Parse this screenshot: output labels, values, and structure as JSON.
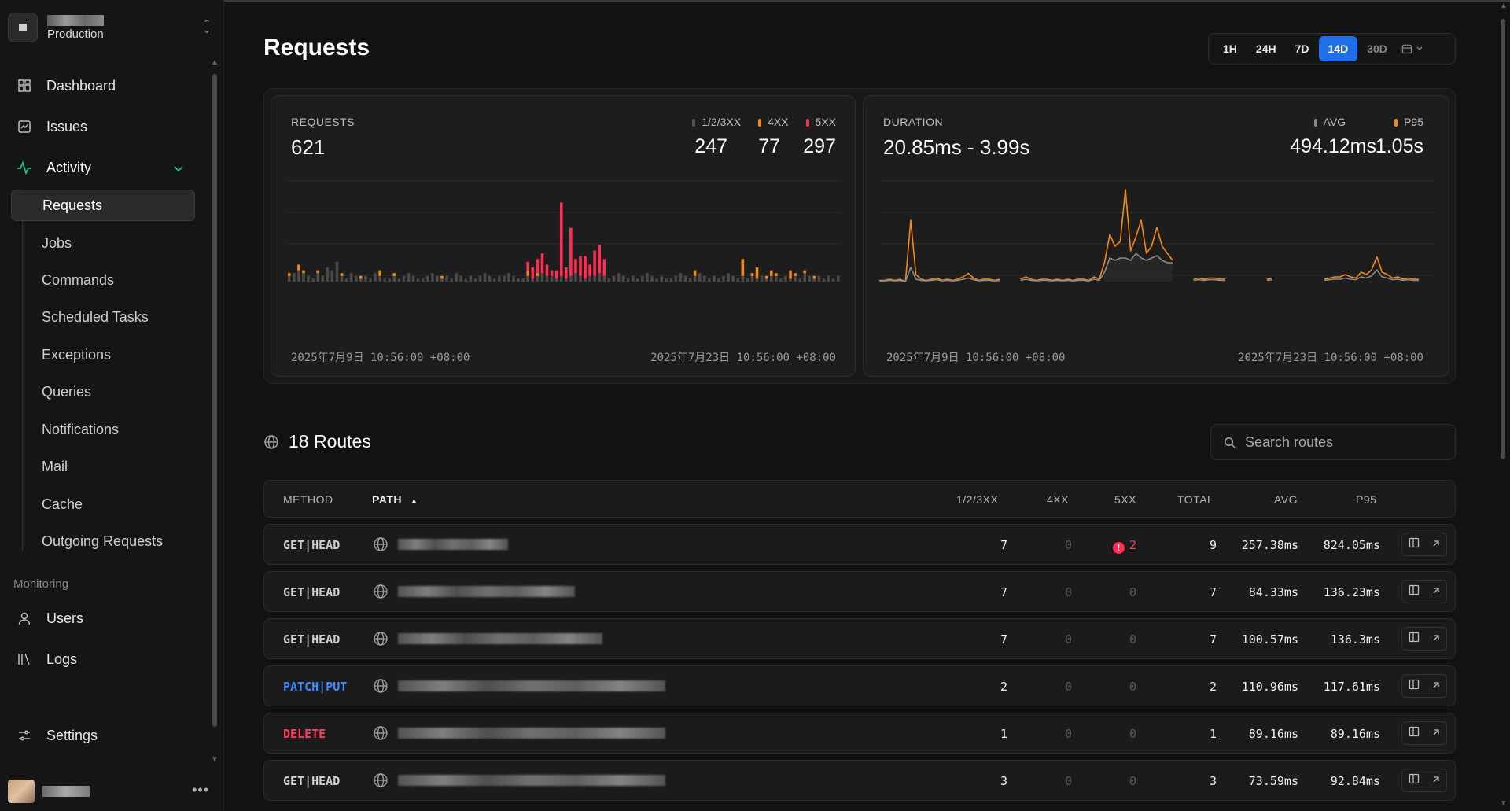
{
  "workspace": {
    "env": "Production"
  },
  "nav": {
    "dashboard": "Dashboard",
    "issues": "Issues",
    "activity": "Activity",
    "sub": [
      "Requests",
      "Jobs",
      "Commands",
      "Scheduled Tasks",
      "Exceptions",
      "Queries",
      "Notifications",
      "Mail",
      "Cache",
      "Outgoing Requests"
    ],
    "monitoring_label": "Monitoring",
    "users": "Users",
    "logs": "Logs",
    "settings": "Settings"
  },
  "page": {
    "title": "Requests"
  },
  "range": {
    "options": [
      "1H",
      "24H",
      "7D",
      "14D",
      "30D"
    ],
    "selected": "14D"
  },
  "requests_card": {
    "label": "REQUESTS",
    "total": "621",
    "legend": [
      {
        "label": "1/2/3XX",
        "value": "247",
        "color": "#555555"
      },
      {
        "label": "4XX",
        "value": "77",
        "color": "#f28a1b"
      },
      {
        "label": "5XX",
        "value": "297",
        "color": "#ff2e54"
      }
    ],
    "start_date": "2025年7月9日 10:56:00 +08:00",
    "end_date": "2025年7月23日 10:56:00 +08:00"
  },
  "duration_card": {
    "label": "DURATION",
    "range": "20.85ms - 3.99s",
    "legend": [
      {
        "label": "AVG",
        "value": "494.12ms",
        "color": "#8a8a8a"
      },
      {
        "label": "P95",
        "value": "1.05s",
        "color": "#f28a1b"
      }
    ],
    "start_date": "2025年7月9日 10:56:00 +08:00",
    "end_date": "2025年7月23日 10:56:00 +08:00"
  },
  "routes": {
    "title": "18 Routes",
    "search_placeholder": "Search routes",
    "columns": {
      "method": "METHOD",
      "path": "PATH",
      "ok": "1/2/3XX",
      "c4": "4XX",
      "c5": "5XX",
      "total": "TOTAL",
      "avg": "AVG",
      "p95": "P95"
    },
    "rows": [
      {
        "method": "GET|HEAD",
        "ok": "7",
        "c4": "0",
        "c5": "2",
        "total": "9",
        "avg": "257.38ms",
        "p95": "824.05ms"
      },
      {
        "method": "GET|HEAD",
        "ok": "7",
        "c4": "0",
        "c5": "0",
        "total": "7",
        "avg": "84.33ms",
        "p95": "136.23ms"
      },
      {
        "method": "GET|HEAD",
        "ok": "7",
        "c4": "0",
        "c5": "0",
        "total": "7",
        "avg": "100.57ms",
        "p95": "136.3ms"
      },
      {
        "method": "PATCH|PUT",
        "ok": "2",
        "c4": "0",
        "c5": "0",
        "total": "2",
        "avg": "110.96ms",
        "p95": "117.61ms"
      },
      {
        "method": "DELETE",
        "ok": "1",
        "c4": "0",
        "c5": "0",
        "total": "1",
        "avg": "89.16ms",
        "p95": "89.16ms"
      },
      {
        "method": "GET|HEAD",
        "ok": "3",
        "c4": "0",
        "c5": "0",
        "total": "3",
        "avg": "73.59ms",
        "p95": "92.84ms"
      }
    ]
  },
  "icons": {
    "sort": "sort-ascending-icon",
    "globe": "globe-icon",
    "search": "search-icon",
    "calendar": "calendar-icon"
  },
  "colors": {
    "accent": "#1e6fe8",
    "warn": "#f28a1b",
    "error": "#ff2e54",
    "ok": "#555555"
  },
  "chart_data": [
    {
      "type": "bar",
      "title": "REQUESTS",
      "stacked": true,
      "series": [
        {
          "name": "1/2/3XX",
          "color": "#4a4a4a",
          "values": [
            2,
            3,
            4,
            3,
            2,
            1,
            3,
            2,
            5,
            4,
            7,
            2,
            1,
            3,
            2,
            1,
            2,
            1,
            3,
            2,
            1,
            1,
            2,
            1,
            2,
            3,
            2,
            1,
            1,
            2,
            3,
            2,
            1,
            2,
            1,
            3,
            2,
            1,
            2,
            1,
            2,
            3,
            2,
            1,
            2,
            2,
            3,
            2,
            1,
            1,
            2,
            1,
            2,
            3,
            2,
            2,
            1,
            2,
            1,
            2,
            3,
            2,
            1,
            2,
            2,
            3,
            2,
            1,
            2,
            3,
            2,
            1,
            2,
            1,
            2,
            3,
            2,
            1,
            2,
            1,
            1,
            2,
            3,
            2,
            1,
            2,
            3,
            2,
            1,
            2,
            1,
            2,
            3,
            2,
            1,
            2,
            1,
            2,
            1,
            2,
            1,
            2,
            2,
            1,
            2,
            1,
            2,
            1,
            3,
            2,
            1,
            2,
            1,
            2,
            1,
            2
          ]
        },
        {
          "name": "4XX",
          "color": "#f28a1b",
          "values": [
            1,
            0,
            2,
            1,
            0,
            0,
            1,
            0,
            0,
            0,
            0,
            1,
            0,
            0,
            0,
            1,
            0,
            0,
            0,
            2,
            0,
            0,
            1,
            0,
            0,
            0,
            0,
            0,
            0,
            0,
            0,
            0,
            1,
            0,
            0,
            0,
            0,
            0,
            0,
            0,
            0,
            0,
            0,
            0,
            0,
            0,
            0,
            0,
            0,
            0,
            2,
            0,
            1,
            0,
            0,
            0,
            0,
            0,
            0,
            0,
            0,
            0,
            0,
            0,
            0,
            0,
            0,
            0,
            0,
            0,
            0,
            0,
            0,
            0,
            0,
            0,
            0,
            0,
            0,
            0,
            0,
            0,
            0,
            0,
            0,
            2,
            0,
            0,
            0,
            0,
            0,
            0,
            0,
            0,
            0,
            6,
            0,
            1,
            4,
            0,
            1,
            2,
            1,
            0,
            0,
            3,
            1,
            0,
            1,
            0,
            1,
            0,
            0,
            0,
            0,
            0
          ]
        },
        {
          "name": "5XX",
          "color": "#ff2e54",
          "values": [
            0,
            0,
            0,
            0,
            0,
            0,
            0,
            0,
            0,
            0,
            0,
            0,
            0,
            0,
            0,
            0,
            0,
            0,
            0,
            0,
            0,
            0,
            0,
            0,
            0,
            0,
            0,
            0,
            0,
            0,
            0,
            0,
            0,
            0,
            0,
            0,
            0,
            0,
            0,
            0,
            0,
            0,
            0,
            0,
            0,
            0,
            0,
            0,
            0,
            0,
            3,
            4,
            5,
            7,
            4,
            2,
            3,
            26,
            4,
            17,
            5,
            7,
            8,
            4,
            9,
            10,
            6,
            0,
            0,
            0,
            0,
            0,
            0,
            0,
            0,
            0,
            0,
            0,
            0,
            0,
            0,
            0,
            0,
            0,
            0,
            0,
            0,
            0,
            0,
            0,
            0,
            0,
            0,
            0,
            0,
            0,
            0,
            0,
            0,
            0,
            0,
            0,
            0,
            0,
            0,
            0,
            0,
            0,
            0,
            0,
            0,
            0,
            0,
            0,
            0,
            0
          ]
        }
      ]
    },
    {
      "type": "line",
      "title": "DURATION",
      "series": [
        {
          "name": "P95",
          "color": "#f28a1b",
          "values": [
            0.05,
            0.05,
            0.1,
            0.05,
            0.1,
            0.0,
            2.6,
            0.3,
            0.1,
            0.05,
            0.1,
            0.15,
            0.05,
            0.1,
            0.05,
            0.1,
            0.2,
            0.35,
            0.15,
            0.05,
            0.1,
            0.1,
            0.05,
            0.1,
            null,
            null,
            null,
            0.1,
            0.2,
            0.1,
            0.05,
            0.1,
            0.1,
            0.05,
            0.1,
            0.05,
            0.1,
            0.05,
            0.1,
            0.1,
            0.05,
            0.2,
            0.1,
            0.8,
            2.0,
            1.5,
            1.7,
            3.9,
            1.3,
            1.9,
            2.6,
            1.2,
            1.5,
            2.3,
            1.5,
            1.2,
            0.9,
            null,
            null,
            null,
            0.1,
            0.15,
            0.1,
            0.15,
            0.15,
            0.1,
            0.1,
            null,
            null,
            0.05,
            null,
            null,
            0.1,
            null,
            0.1,
            0.15,
            null,
            0.05,
            null,
            null,
            0.1,
            null,
            0.05,
            null,
            null,
            0.1,
            0.15,
            0.2,
            0.2,
            0.3,
            0.2,
            0.15,
            0.4,
            0.3,
            0.5,
            1.05,
            0.4,
            0.3,
            0.15,
            0.2,
            0.1,
            0.15,
            0.1,
            0.1,
            null,
            null,
            0.05
          ]
        },
        {
          "name": "AVG",
          "color": "#8a8a8a",
          "values": [
            0.03,
            0.03,
            0.05,
            0.03,
            0.05,
            0.0,
            0.6,
            0.1,
            0.05,
            0.03,
            0.05,
            0.08,
            0.03,
            0.05,
            0.03,
            0.05,
            0.1,
            0.15,
            0.08,
            0.03,
            0.05,
            0.05,
            0.03,
            0.05,
            null,
            null,
            null,
            0.05,
            0.1,
            0.05,
            0.03,
            0.05,
            0.05,
            0.03,
            0.05,
            0.03,
            0.05,
            0.03,
            0.05,
            0.05,
            0.03,
            0.1,
            0.05,
            0.4,
            1.0,
            0.9,
            1.0,
            1.0,
            0.9,
            1.2,
            1.0,
            0.9,
            1.0,
            1.1,
            0.9,
            0.8,
            0.8,
            null,
            null,
            null,
            0.05,
            0.08,
            0.05,
            0.08,
            0.08,
            0.05,
            0.05,
            null,
            null,
            0.03,
            null,
            null,
            0.05,
            null,
            0.05,
            0.08,
            null,
            0.03,
            null,
            null,
            0.05,
            null,
            0.03,
            null,
            null,
            0.05,
            0.08,
            0.1,
            0.1,
            0.15,
            0.1,
            0.08,
            0.2,
            0.15,
            0.25,
            0.5,
            0.2,
            0.15,
            0.08,
            0.1,
            0.05,
            0.08,
            0.05,
            0.05,
            null,
            null,
            0.03
          ]
        }
      ]
    }
  ]
}
